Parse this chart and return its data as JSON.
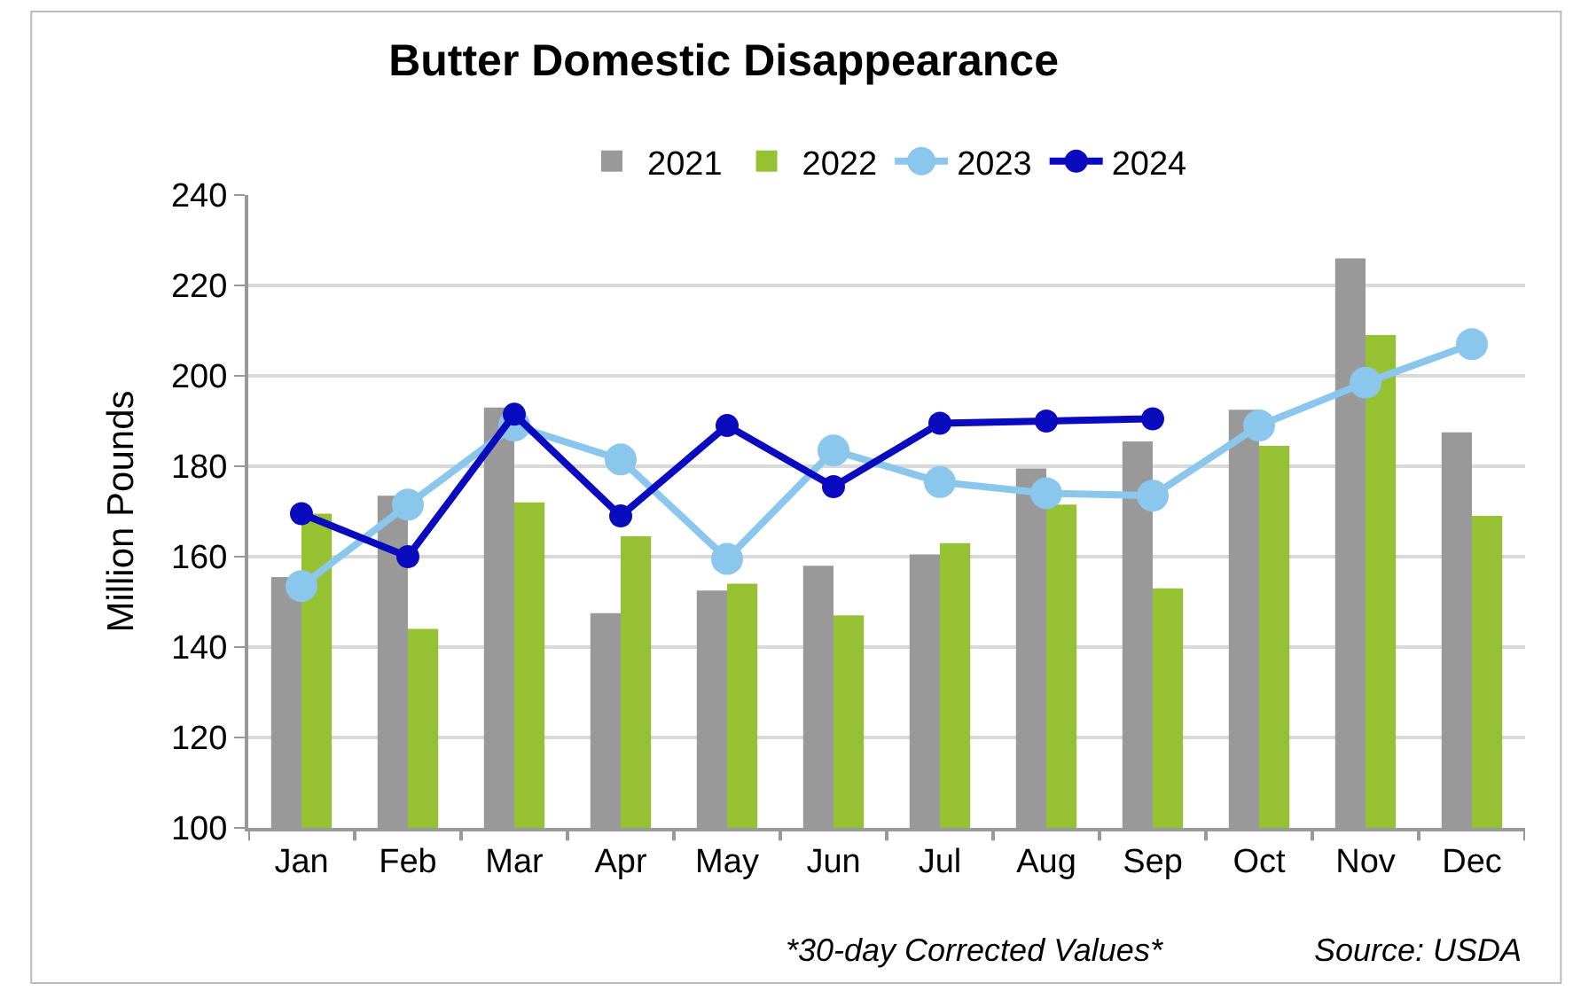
{
  "chart_data": {
    "type": "bar",
    "title": "Butter Domestic Disappearance",
    "ylabel": "Million Pounds",
    "categories": [
      "Jan",
      "Feb",
      "Mar",
      "Apr",
      "May",
      "Jun",
      "Jul",
      "Aug",
      "Sep",
      "Oct",
      "Nov",
      "Dec"
    ],
    "series": [
      {
        "name": "2021",
        "color": "#999999",
        "values": [
          155.5,
          173.5,
          193,
          147.5,
          152.5,
          158,
          160.5,
          179.5,
          185.5,
          192.5,
          226,
          187.5
        ]
      },
      {
        "name": "2022",
        "color": "#96c133",
        "values": [
          169.5,
          144,
          172,
          164.5,
          154,
          147,
          163,
          171.5,
          153,
          184.5,
          209,
          169
        ]
      },
      {
        "name": "2023",
        "type": "line",
        "color": "#8bc6ec",
        "values": [
          153.5,
          171.5,
          189,
          181.5,
          159.5,
          183.5,
          176.5,
          174,
          173.5,
          189,
          198.5,
          207
        ]
      },
      {
        "name": "2024",
        "type": "line",
        "color": "#0a0abf",
        "values": [
          169.5,
          160,
          191.5,
          169,
          189,
          175.5,
          189.5,
          190,
          190.5,
          null,
          null,
          null
        ]
      }
    ],
    "ylim": [
      100,
      240
    ],
    "yticks": [
      100,
      120,
      140,
      160,
      180,
      200,
      220,
      240
    ],
    "grid": "y",
    "legend": "top",
    "marker": "circle",
    "line_style": "solid",
    "annotations": [
      "*30-day Corrected Values*",
      "Source: USDA"
    ]
  }
}
